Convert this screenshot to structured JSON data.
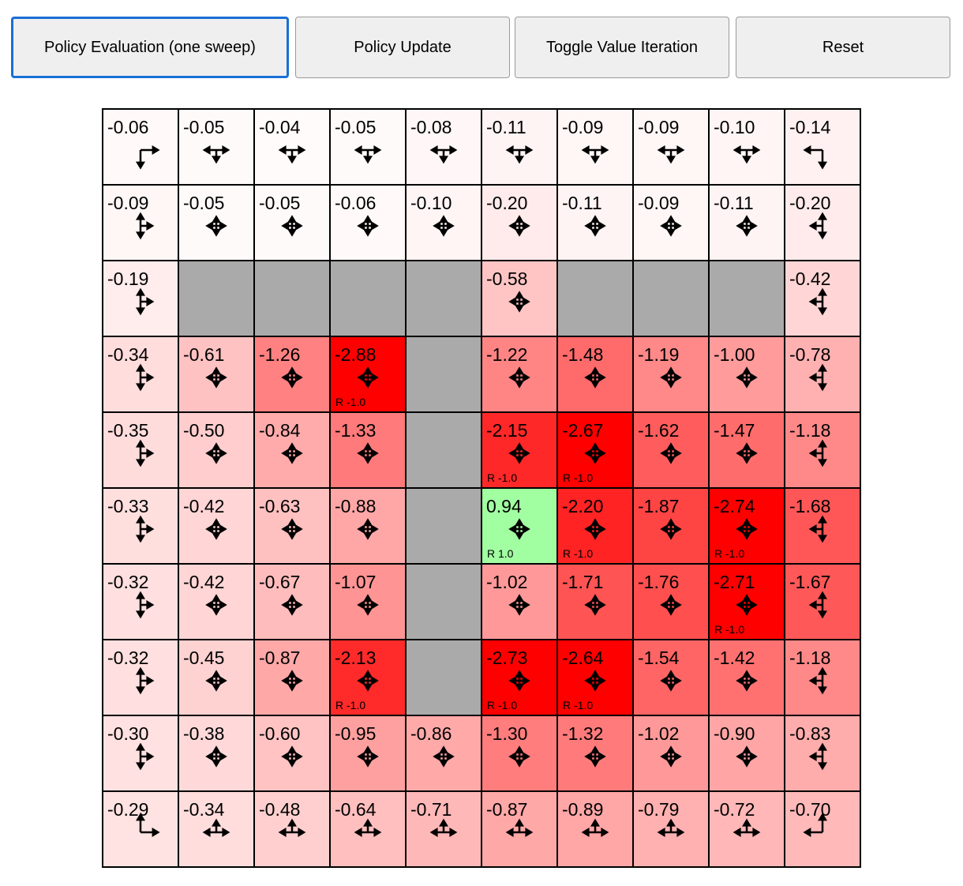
{
  "toolbar": {
    "buttons": [
      {
        "label": "Policy Evaluation (one sweep)",
        "focused": true
      },
      {
        "label": "Policy Update"
      },
      {
        "label": "Toggle Value Iteration"
      },
      {
        "label": "Reset"
      }
    ]
  },
  "colors": {
    "wall": "#aaaaaa",
    "focus_border": "#1a6fd6",
    "button_bg": "#efefef"
  },
  "grid": {
    "values": [
      [
        "-0.06",
        "-0.05",
        "-0.04",
        "-0.05",
        "-0.08",
        "-0.11",
        "-0.09",
        "-0.09",
        "-0.10",
        "-0.14"
      ],
      [
        "-0.09",
        "-0.05",
        "-0.05",
        "-0.06",
        "-0.10",
        "-0.20",
        "-0.11",
        "-0.09",
        "-0.11",
        "-0.20"
      ],
      [
        "-0.19",
        null,
        null,
        null,
        null,
        "-0.58",
        null,
        null,
        null,
        "-0.42"
      ],
      [
        "-0.34",
        "-0.61",
        "-1.26",
        "-2.88",
        null,
        "-1.22",
        "-1.48",
        "-1.19",
        "-1.00",
        "-0.78"
      ],
      [
        "-0.35",
        "-0.50",
        "-0.84",
        "-1.33",
        null,
        "-2.15",
        "-2.67",
        "-1.62",
        "-1.47",
        "-1.18"
      ],
      [
        "-0.33",
        "-0.42",
        "-0.63",
        "-0.88",
        null,
        "0.94",
        "-2.20",
        "-1.87",
        "-2.74",
        "-1.68"
      ],
      [
        "-0.32",
        "-0.42",
        "-0.67",
        "-1.07",
        null,
        "-1.02",
        "-1.71",
        "-1.76",
        "-2.71",
        "-1.67"
      ],
      [
        "-0.32",
        "-0.45",
        "-0.87",
        "-2.13",
        null,
        "-2.73",
        "-2.64",
        "-1.54",
        "-1.42",
        "-1.18"
      ],
      [
        "-0.30",
        "-0.38",
        "-0.60",
        "-0.95",
        "-0.86",
        "-1.30",
        "-1.32",
        "-1.02",
        "-0.90",
        "-0.83"
      ],
      [
        "-0.29",
        "-0.34",
        "-0.48",
        "-0.64",
        "-0.71",
        "-0.87",
        "-0.89",
        "-0.79",
        "-0.72",
        "-0.70"
      ]
    ],
    "rewards": [
      {
        "row": 3,
        "col": 3,
        "label": "R -1.0"
      },
      {
        "row": 4,
        "col": 5,
        "label": "R -1.0"
      },
      {
        "row": 4,
        "col": 6,
        "label": "R -1.0"
      },
      {
        "row": 5,
        "col": 5,
        "label": "R 1.0"
      },
      {
        "row": 5,
        "col": 6,
        "label": "R -1.0"
      },
      {
        "row": 5,
        "col": 8,
        "label": "R -1.0"
      },
      {
        "row": 6,
        "col": 8,
        "label": "R -1.0"
      },
      {
        "row": 7,
        "col": 3,
        "label": "R -1.0"
      },
      {
        "row": 7,
        "col": 5,
        "label": "R -1.0"
      },
      {
        "row": 7,
        "col": 6,
        "label": "R -1.0"
      }
    ],
    "policy_note_actions": "l=left u=up r=right d=down",
    "policy": [
      [
        "rd",
        "lrd",
        "lrd",
        "lrd",
        "lrd",
        "lrd",
        "lrd",
        "lrd",
        "lrd",
        "ld"
      ],
      [
        "urd",
        "lurd",
        "lurd",
        "lurd",
        "lurd",
        "lurd",
        "lurd",
        "lurd",
        "lurd",
        "uld"
      ],
      [
        "urd",
        "",
        "",
        "",
        "",
        "lurd",
        "",
        "",
        "",
        "uld"
      ],
      [
        "urd",
        "lurd",
        "lurd",
        "lurd",
        "",
        "lurd",
        "lurd",
        "lurd",
        "lurd",
        "uld"
      ],
      [
        "urd",
        "lurd",
        "lurd",
        "lurd",
        "",
        "lurd",
        "lurd",
        "lurd",
        "lurd",
        "uld"
      ],
      [
        "urd",
        "lurd",
        "lurd",
        "lurd",
        "",
        "lurd",
        "lurd",
        "lurd",
        "lurd",
        "uld"
      ],
      [
        "urd",
        "lurd",
        "lurd",
        "lurd",
        "",
        "lurd",
        "lurd",
        "lurd",
        "lurd",
        "uld"
      ],
      [
        "urd",
        "lurd",
        "lurd",
        "lurd",
        "",
        "lurd",
        "lurd",
        "lurd",
        "lurd",
        "uld"
      ],
      [
        "urd",
        "lurd",
        "lurd",
        "lurd",
        "lurd",
        "lurd",
        "lurd",
        "lurd",
        "lurd",
        "uld"
      ],
      [
        "ur",
        "lur",
        "lur",
        "lur",
        "lur",
        "lur",
        "lur",
        "lur",
        "lur",
        "ul"
      ]
    ]
  }
}
